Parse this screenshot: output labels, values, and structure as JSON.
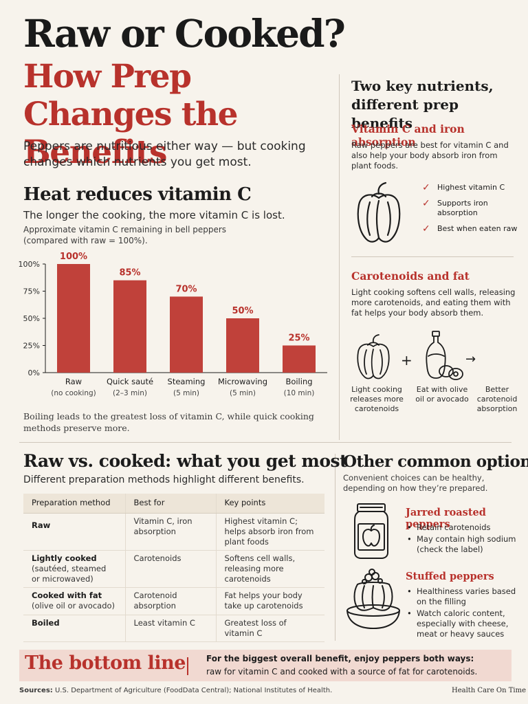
{
  "header": {
    "title": "Raw or Cooked?",
    "subtitle": "How Prep Changes the Benefits",
    "intro": "Peppers are nutritious either way — but cooking changes which nutrients you get most."
  },
  "heat_section": {
    "title": "Heat reduces vitamin C",
    "subtitle": "The longer the cooking, the more vitamin C is lost.",
    "note": "Approximate vitamin C remaining in bell peppers (compared with raw = 100%).",
    "caption": "Boiling leads to the greatest loss of vitamin C, while quick cooking methods preserve more."
  },
  "chart_data": {
    "type": "bar",
    "categories": [
      "Raw",
      "Quick sauté",
      "Steaming",
      "Microwaving",
      "Boiling"
    ],
    "category_notes": [
      "(no cooking)",
      "(2–3 min)",
      "(5 min)",
      "(5 min)",
      "(10 min)"
    ],
    "values": [
      100,
      85,
      70,
      50,
      25
    ],
    "value_labels": [
      "100%",
      "85%",
      "70%",
      "50%",
      "25%"
    ],
    "y_ticks": [
      0,
      25,
      50,
      75,
      100
    ],
    "y_tick_labels": [
      "0%",
      "25%",
      "50%",
      "75%",
      "100%"
    ],
    "ylim": [
      0,
      100
    ],
    "title": "",
    "xlabel": "",
    "ylabel": "",
    "grid": false,
    "bar_color": "#c0413a",
    "label_color": "#b8322c"
  },
  "key_nutrients": {
    "title": "Two key nutrients, different prep benefits",
    "vitamin_c": {
      "heading": "Vitamin C and iron absorption",
      "text": "Raw peppers are best for vitamin C and also help your body absorb iron from plant foods.",
      "icon": "bell-pepper-icon",
      "checks": [
        "Highest vitamin C",
        "Supports iron absorption",
        "Best when eaten raw"
      ]
    },
    "carotenoids": {
      "heading": "Carotenoids and fat",
      "text": "Light cooking softens cell walls, releasing more carotenoids, and eating them with fat helps your body absorb them.",
      "steps": [
        {
          "icon": "bell-pepper-icon",
          "label": "Light cooking releases more carotenoids"
        },
        {
          "icon": "olive-oil-avocado-icon",
          "label": "Eat with olive oil or avocado"
        },
        {
          "icon": "arrow-right-icon",
          "label": "Better carotenoid absorption"
        }
      ],
      "plus": "+",
      "arrow": "→"
    }
  },
  "raw_vs_cooked": {
    "title": "Raw vs. cooked: what you get most",
    "subtitle": "Different preparation methods highlight different benefits.",
    "columns": [
      "Preparation method",
      "Best for",
      "Key points"
    ],
    "rows": [
      {
        "method": "Raw",
        "method_note": "",
        "best_for": "Vitamin C, iron absorption",
        "key_points": "Highest vitamin C; helps absorb iron from plant foods"
      },
      {
        "method": "Lightly cooked",
        "method_note": "(sautéed, steamed or microwaved)",
        "best_for": "Carotenoids",
        "key_points": "Softens cell walls, releasing more carotenoids"
      },
      {
        "method": "Cooked with fat",
        "method_note": "(olive oil or avocado)",
        "best_for": "Carotenoid absorption",
        "key_points": "Fat helps your body take up carotenoids"
      },
      {
        "method": "Boiled",
        "method_note": "",
        "best_for": "Least vitamin C",
        "key_points": "Greatest loss of vitamin C"
      }
    ]
  },
  "other_options": {
    "title": "Other common options",
    "subtitle": "Convenient choices can be healthy, depending on how they’re prepared.",
    "jarred": {
      "heading": "Jarred roasted peppers",
      "icon": "jar-icon",
      "bullets": [
        "Retain carotenoids",
        "May contain high sodium (check the label)"
      ]
    },
    "stuffed": {
      "heading": "Stuffed peppers",
      "icon": "stuffed-pepper-icon",
      "bullets": [
        "Healthiness varies based on the filling",
        "Watch caloric content, especially with cheese, meat or heavy sauces"
      ]
    }
  },
  "bottom_line": {
    "title": "The bottom line",
    "line1": "For the biggest overall benefit, enjoy peppers both ways:",
    "line2": "raw for vitamin C and cooked with a source of fat for carotenoids."
  },
  "footer": {
    "sources_label": "Sources:",
    "sources": "U.S. Department of Agriculture (FoodData Central); National Institutes of Health.",
    "credit": "Health Care On Time"
  }
}
